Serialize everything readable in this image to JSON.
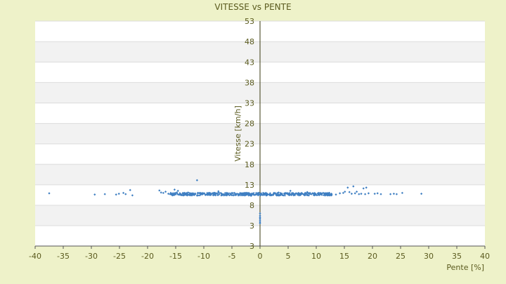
{
  "chart_data": {
    "type": "scatter",
    "title": "VITESSE vs PENTE",
    "xlabel": "Pente [%]",
    "ylabel": "Vitesse [km/h]",
    "xlim": [
      -40,
      40
    ],
    "x_ticks": [
      -40,
      -35,
      -30,
      -25,
      -20,
      -15,
      -10,
      -5,
      0,
      5,
      10,
      15,
      20,
      25,
      30,
      35,
      40
    ],
    "y_tick_labels": [
      "3",
      "3",
      "8",
      "13",
      "18",
      "23",
      "28",
      "33",
      "38",
      "43",
      "48",
      "53"
    ],
    "plot_background": "#ffffff",
    "band_color": "#f2f2f2",
    "grid": true,
    "legend": "none",
    "series": [
      {
        "color": "#3f7fc2",
        "points": [
          [
            -37.5,
            10.9
          ],
          [
            -29.4,
            10.6
          ],
          [
            -27.6,
            10.7
          ],
          [
            -25.6,
            10.6
          ],
          [
            -25.1,
            10.8
          ],
          [
            -24.3,
            11.0
          ],
          [
            -23.9,
            10.7
          ],
          [
            -23.1,
            11.7
          ],
          [
            -22.7,
            10.4
          ],
          [
            -17.9,
            11.6
          ],
          [
            -17.6,
            11.1
          ],
          [
            -17.2,
            11.0
          ],
          [
            -16.8,
            11.3
          ],
          [
            -16.3,
            10.8
          ],
          [
            -15.5,
            10.5
          ],
          [
            -15.2,
            11.8
          ],
          [
            -14.8,
            11.1
          ],
          [
            -14.6,
            11.5
          ],
          [
            -14.2,
            10.7
          ],
          [
            -13.6,
            10.9
          ],
          [
            -13.3,
            10.7
          ],
          [
            -12.8,
            11.1
          ],
          [
            -12.5,
            10.6
          ],
          [
            -11.9,
            10.9
          ],
          [
            -11.5,
            10.7
          ],
          [
            -11.2,
            14.1
          ],
          [
            -10.8,
            11.0
          ],
          [
            -10.4,
            10.8
          ],
          [
            -9.9,
            10.9
          ],
          [
            -9.4,
            10.7
          ],
          [
            -8.9,
            11.0
          ],
          [
            -8.3,
            10.8
          ],
          [
            -7.8,
            10.9
          ],
          [
            -7.4,
            11.4
          ],
          [
            -6.8,
            10.8
          ],
          [
            -6.3,
            10.6
          ],
          [
            -5.7,
            10.9
          ],
          [
            -5.2,
            10.7
          ],
          [
            -4.6,
            11.0
          ],
          [
            -4.1,
            10.8
          ],
          [
            -3.6,
            10.6
          ],
          [
            -3.1,
            10.9
          ],
          [
            -2.6,
            10.7
          ],
          [
            -2.1,
            10.8
          ],
          [
            -1.6,
            10.3
          ],
          [
            -1.2,
            10.7
          ],
          [
            -0.7,
            10.6
          ],
          [
            -0.3,
            10.8
          ],
          [
            0.0,
            10.7
          ],
          [
            0.0,
            3.6
          ],
          [
            0.0,
            3.9
          ],
          [
            0.0,
            4.3
          ],
          [
            0.0,
            4.7
          ],
          [
            0.0,
            5.0
          ],
          [
            0.0,
            5.4
          ],
          [
            0.0,
            6.0
          ],
          [
            0.3,
            10.6
          ],
          [
            0.8,
            10.8
          ],
          [
            1.3,
            10.7
          ],
          [
            1.8,
            10.9
          ],
          [
            2.3,
            10.6
          ],
          [
            2.8,
            10.8
          ],
          [
            3.3,
            11.1
          ],
          [
            3.8,
            10.7
          ],
          [
            4.4,
            10.9
          ],
          [
            4.9,
            10.8
          ],
          [
            5.4,
            11.5
          ],
          [
            5.9,
            10.7
          ],
          [
            6.4,
            10.9
          ],
          [
            6.9,
            10.8
          ],
          [
            7.4,
            11.0
          ],
          [
            7.9,
            10.7
          ],
          [
            8.4,
            11.2
          ],
          [
            8.9,
            10.8
          ],
          [
            9.4,
            10.9
          ],
          [
            9.9,
            10.7
          ],
          [
            10.4,
            11.0
          ],
          [
            10.9,
            10.8
          ],
          [
            11.4,
            10.9
          ],
          [
            11.9,
            10.7
          ],
          [
            12.3,
            11.0
          ],
          [
            12.7,
            10.8
          ],
          [
            13.5,
            10.6
          ],
          [
            14.2,
            10.9
          ],
          [
            14.8,
            11.0
          ],
          [
            15.1,
            11.3
          ],
          [
            15.6,
            12.3
          ],
          [
            15.9,
            11.2
          ],
          [
            16.3,
            10.8
          ],
          [
            16.6,
            12.6
          ],
          [
            16.9,
            10.9
          ],
          [
            17.2,
            11.3
          ],
          [
            17.6,
            10.7
          ],
          [
            18.0,
            10.8
          ],
          [
            18.4,
            12.1
          ],
          [
            18.7,
            10.7
          ],
          [
            18.9,
            12.3
          ],
          [
            19.3,
            10.9
          ],
          [
            20.4,
            10.8
          ],
          [
            20.9,
            10.9
          ],
          [
            21.5,
            10.7
          ],
          [
            23.2,
            10.7
          ],
          [
            23.8,
            10.8
          ],
          [
            24.3,
            10.7
          ],
          [
            25.3,
            11.0
          ],
          [
            28.7,
            10.8
          ]
        ]
      }
    ]
  }
}
